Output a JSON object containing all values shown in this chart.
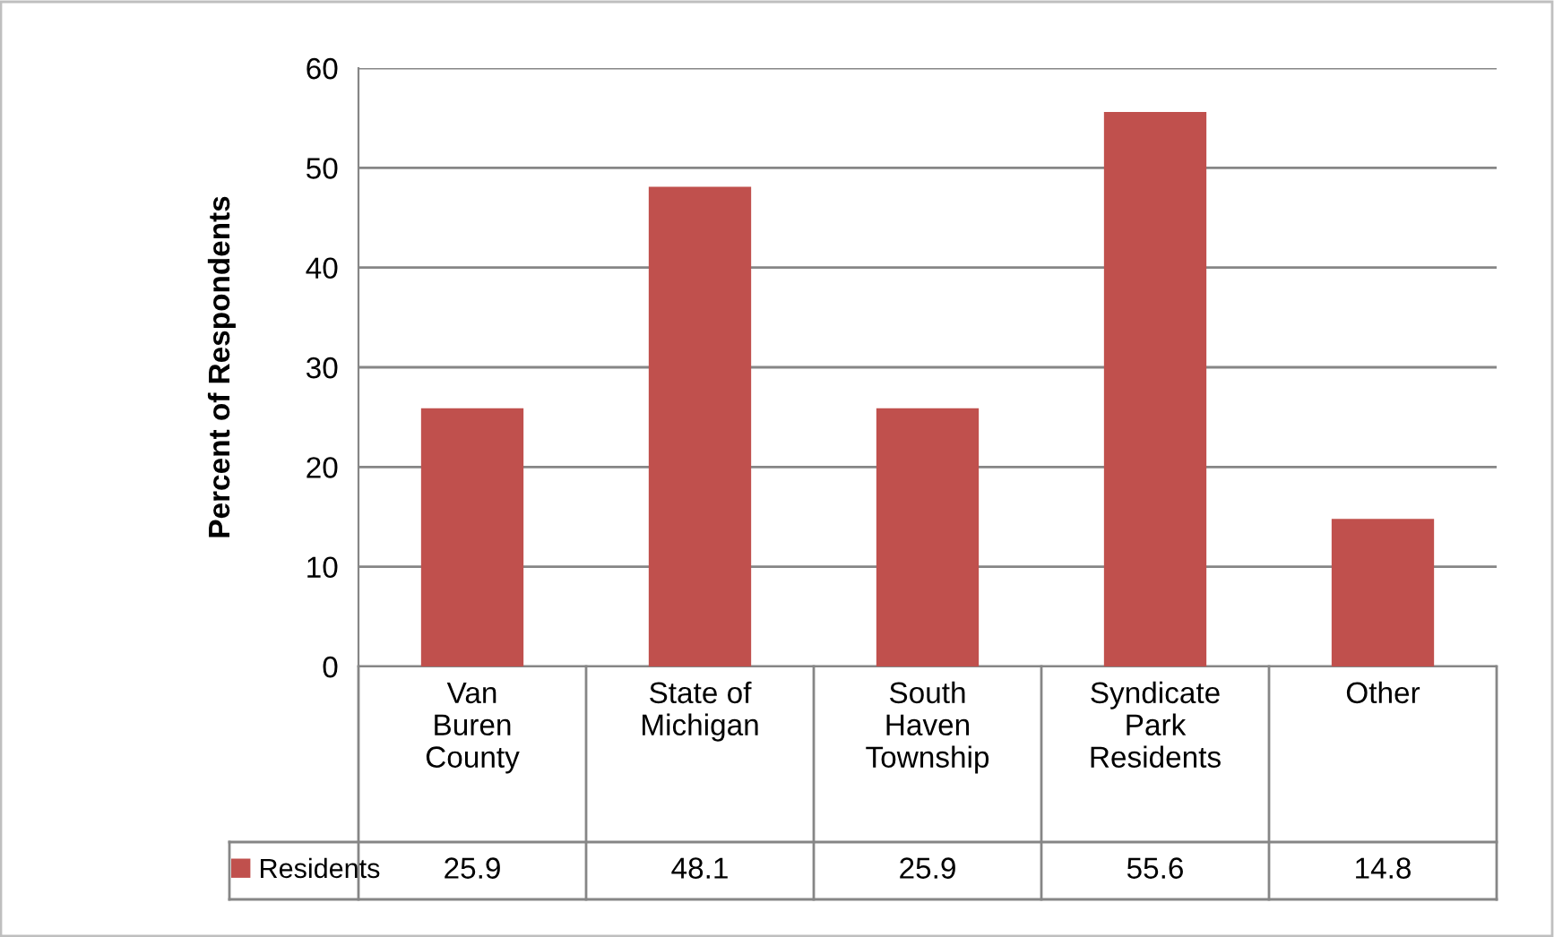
{
  "chart_data": {
    "type": "bar",
    "ylabel": "Percent of Respondents",
    "categories": [
      "Van\nBuren\nCounty",
      "State of\nMichigan",
      "South\nHaven\nTownship",
      "Syndicate\nPark\nResidents",
      "Other"
    ],
    "series": [
      {
        "name": "Residents",
        "color": "#c0504d",
        "values": [
          25.9,
          48.1,
          25.9,
          55.6,
          14.8
        ]
      }
    ],
    "ylim": [
      0,
      60
    ],
    "yticks": [
      0,
      10,
      20,
      30,
      40,
      50,
      60
    ],
    "grid": "y",
    "legend": "bottom",
    "data_labels": true
  }
}
